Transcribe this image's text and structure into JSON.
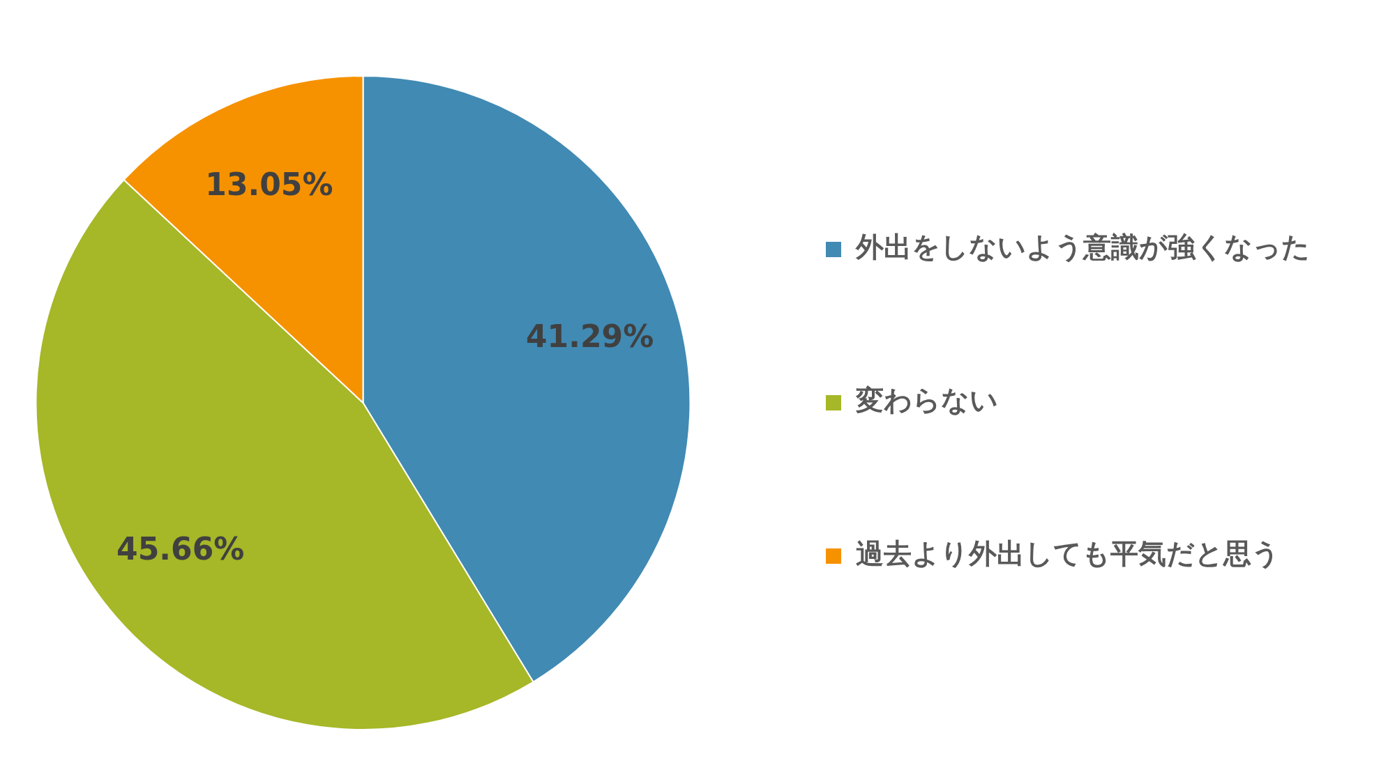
{
  "chart_data": {
    "type": "pie",
    "categories": [
      "外出をしないよう意識が強くなった",
      "変わらない",
      "過去より外出しても平気だと思う"
    ],
    "values": [
      41.29,
      45.66,
      13.05
    ],
    "colors": [
      "#418ab3",
      "#a6b727",
      "#f69200"
    ],
    "value_labels": [
      "41.29%",
      "45.66%",
      "13.05%"
    ],
    "legend": "right"
  }
}
